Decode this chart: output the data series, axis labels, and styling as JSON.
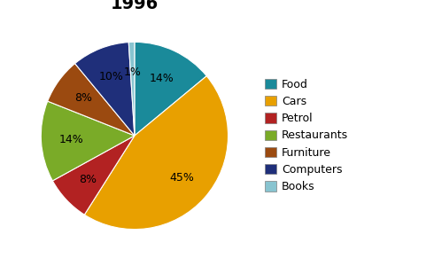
{
  "title": "1996",
  "labels": [
    "Food",
    "Cars",
    "Petrol",
    "Restaurants",
    "Furniture",
    "Computers",
    "Books"
  ],
  "values": [
    14,
    45,
    8,
    14,
    8,
    10,
    1
  ],
  "colors": [
    "#1A8A9A",
    "#E8A000",
    "#B22222",
    "#7AAB28",
    "#9B4A10",
    "#1F2F7A",
    "#88C4D0"
  ],
  "pct_labels": [
    "14%",
    "45%",
    "8%",
    "14%",
    "8%",
    "10%",
    "1%"
  ],
  "startangle": 90,
  "title_fontsize": 14,
  "legend_fontsize": 9,
  "pct_fontsize": 9,
  "figsize": [
    4.9,
    3.0
  ],
  "dpi": 100
}
